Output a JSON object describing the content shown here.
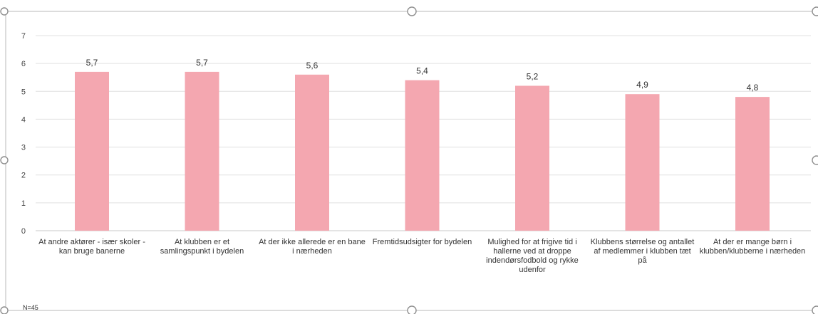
{
  "chart_data": {
    "type": "bar",
    "categories": [
      "At andre aktører - især skoler - kan bruge banerne",
      "At klubben er et samlingspunkt i bydelen",
      "At der ikke allerede er en bane i nærheden",
      "Fremtidsudsigter for bydelen",
      "Mulighed for at frigive tid i hallerne ved at droppe indendørsfodbold og rykke udenfor",
      "Klubbens størrelse og antallet af medlemmer i klubben tæt på",
      "At der er mange børn i klubben/klubberne i nærheden"
    ],
    "values": [
      5.7,
      5.7,
      5.6,
      5.4,
      5.2,
      4.9,
      4.8
    ],
    "data_labels": [
      "5,7",
      "5,7",
      "5,6",
      "5,4",
      "5,2",
      "4,9",
      "4,8"
    ],
    "ylim": [
      0,
      7
    ],
    "yticks": [
      "0",
      "1",
      "2",
      "3",
      "4",
      "5",
      "6",
      "7"
    ],
    "bar_color": "#f4a7b0",
    "grid": true,
    "legend": "none",
    "note": "N=45"
  }
}
